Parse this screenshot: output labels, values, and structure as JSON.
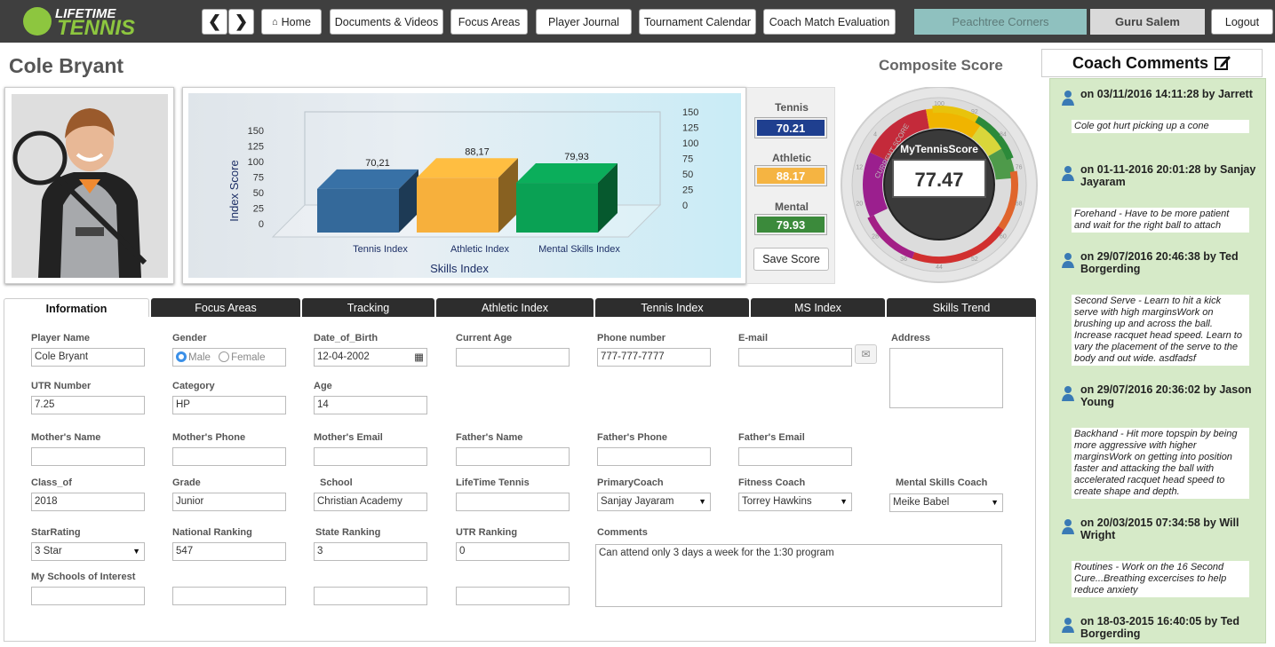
{
  "brand": {
    "line1": "LIFETIME",
    "line2": "TENNIS"
  },
  "nav": {
    "back": "❮",
    "forward": "❯",
    "items": [
      "Home",
      "Documents & Videos",
      "Focus Areas",
      "Player Journal",
      "Tournament Calendar",
      "Coach Match Evaluation"
    ],
    "location": "Peachtree Corners",
    "user": "Guru Salem",
    "logout": "Logout"
  },
  "player": {
    "name": "Cole Bryant"
  },
  "chart_data": {
    "type": "bar",
    "categories": [
      "Tennis Index",
      "Athletic Index",
      "Mental Skills Index"
    ],
    "values": [
      70.21,
      88.17,
      79.93
    ],
    "value_labels": [
      "70,21",
      "88,17",
      "79,93"
    ],
    "xlabel": "Skills Index",
    "ylabel": "Index Score",
    "ylim": [
      0,
      150
    ],
    "yticks": [
      "0",
      "25",
      "50",
      "75",
      "100",
      "125",
      "150"
    ],
    "colors": [
      "#34699a",
      "#f7b03c",
      "#0aa154"
    ]
  },
  "scores": {
    "tennis_label": "Tennis",
    "tennis": "70.21",
    "athletic_label": "Athletic",
    "athletic": "88.17",
    "mental_label": "Mental",
    "mental": "79.93",
    "save": "Save Score",
    "colors": {
      "tennis": "#1f3f8f",
      "athletic": "#f5b442",
      "mental": "#3b8a3b"
    }
  },
  "composite": {
    "title": "Composite Score",
    "gauge_label": "MyTennisScore",
    "value": "77.47",
    "arc_text": "CURRENT SCORE",
    "ticks": [
      "100",
      "92",
      "84",
      "76",
      "68",
      "60",
      "52",
      "44",
      "36",
      "28",
      "20",
      "12",
      "4"
    ]
  },
  "coach": {
    "title": "Coach Comments",
    "entries": [
      {
        "meta": "on 03/11/2016 14:11:28 by Jarrett",
        "text": "Cole got hurt picking up a cone"
      },
      {
        "meta": "on 01-11-2016 20:01:28 by Sanjay Jayaram",
        "text": "Forehand - Have to be more patient and wait for the right ball to attach"
      },
      {
        "meta": "on 29/07/2016 20:46:38 by Ted Borgerding",
        "text": "Second Serve - Learn to hit a kick serve with high marginsWork on brushing up and across the ball. Increase racquet head speed. Learn to vary the placement of the serve to the body and out wide. asdfadsf"
      },
      {
        "meta": "on 29/07/2016 20:36:02 by Jason Young",
        "text": "Backhand - Hit more topspin by being more aggressive with higher marginsWork on getting into position faster and attacking the ball with accelerated racquet head speed to create shape and depth."
      },
      {
        "meta": "on 20/03/2015 07:34:58 by Will Wright",
        "text": "Routines - Work on the 16 Second Cure...Breathing excercises to help reduce anxiety"
      },
      {
        "meta": "on 18-03-2015 16:40:05 by Ted Borgerding",
        "text": ""
      }
    ]
  },
  "tabs": [
    "Information",
    "Focus Areas",
    "Tracking",
    "Athletic Index",
    "Tennis Index",
    "MS Index",
    "Skills Trend"
  ],
  "form": {
    "player_name": {
      "label": "Player Name",
      "value": "Cole Bryant"
    },
    "gender": {
      "label": "Gender",
      "opt1": "Male",
      "opt2": "Female",
      "selected": "Male"
    },
    "dob": {
      "label": "Date_of_Birth",
      "value": "12-04-2002"
    },
    "current_age": {
      "label": "Current Age",
      "value": ""
    },
    "phone": {
      "label": "Phone number",
      "value": "777-777-7777"
    },
    "email": {
      "label": "E-mail",
      "value": ""
    },
    "address": {
      "label": "Address",
      "value": ""
    },
    "utr_number": {
      "label": "UTR Number",
      "value": "7.25"
    },
    "category": {
      "label": "Category",
      "value": "HP"
    },
    "age": {
      "label": "Age",
      "value": "14"
    },
    "mothers_name": {
      "label": "Mother's Name",
      "value": ""
    },
    "mothers_phone": {
      "label": "Mother's Phone",
      "value": ""
    },
    "mothers_email": {
      "label": "Mother's Email",
      "value": ""
    },
    "fathers_name": {
      "label": "Father's Name",
      "value": ""
    },
    "fathers_phone": {
      "label": "Father's Phone",
      "value": ""
    },
    "fathers_email": {
      "label": "Father's Email",
      "value": ""
    },
    "class_of": {
      "label": "Class_of",
      "value": "2018"
    },
    "grade": {
      "label": "Grade",
      "value": "Junior"
    },
    "school": {
      "label": "School",
      "value": "Christian Academy"
    },
    "lifetime_tennis": {
      "label": "LifeTime Tennis",
      "value": ""
    },
    "primary_coach": {
      "label": "PrimaryCoach",
      "value": "Sanjay Jayaram"
    },
    "fitness_coach": {
      "label": "Fitness Coach",
      "value": "Torrey Hawkins"
    },
    "mental_coach": {
      "label": "Mental Skills Coach",
      "value": "Meike Babel"
    },
    "star_rating": {
      "label": "StarRating",
      "value": "3 Star"
    },
    "national_ranking": {
      "label": "National Ranking",
      "value": "547"
    },
    "state_ranking": {
      "label": "State Ranking",
      "value": "3"
    },
    "utr_ranking": {
      "label": "UTR Ranking",
      "value": "0"
    },
    "comments": {
      "label": "Comments",
      "value": "Can attend only 3 days a week for the 1:30 program"
    },
    "schools_interest": {
      "label": "My Schools of Interest",
      "value": ""
    }
  }
}
